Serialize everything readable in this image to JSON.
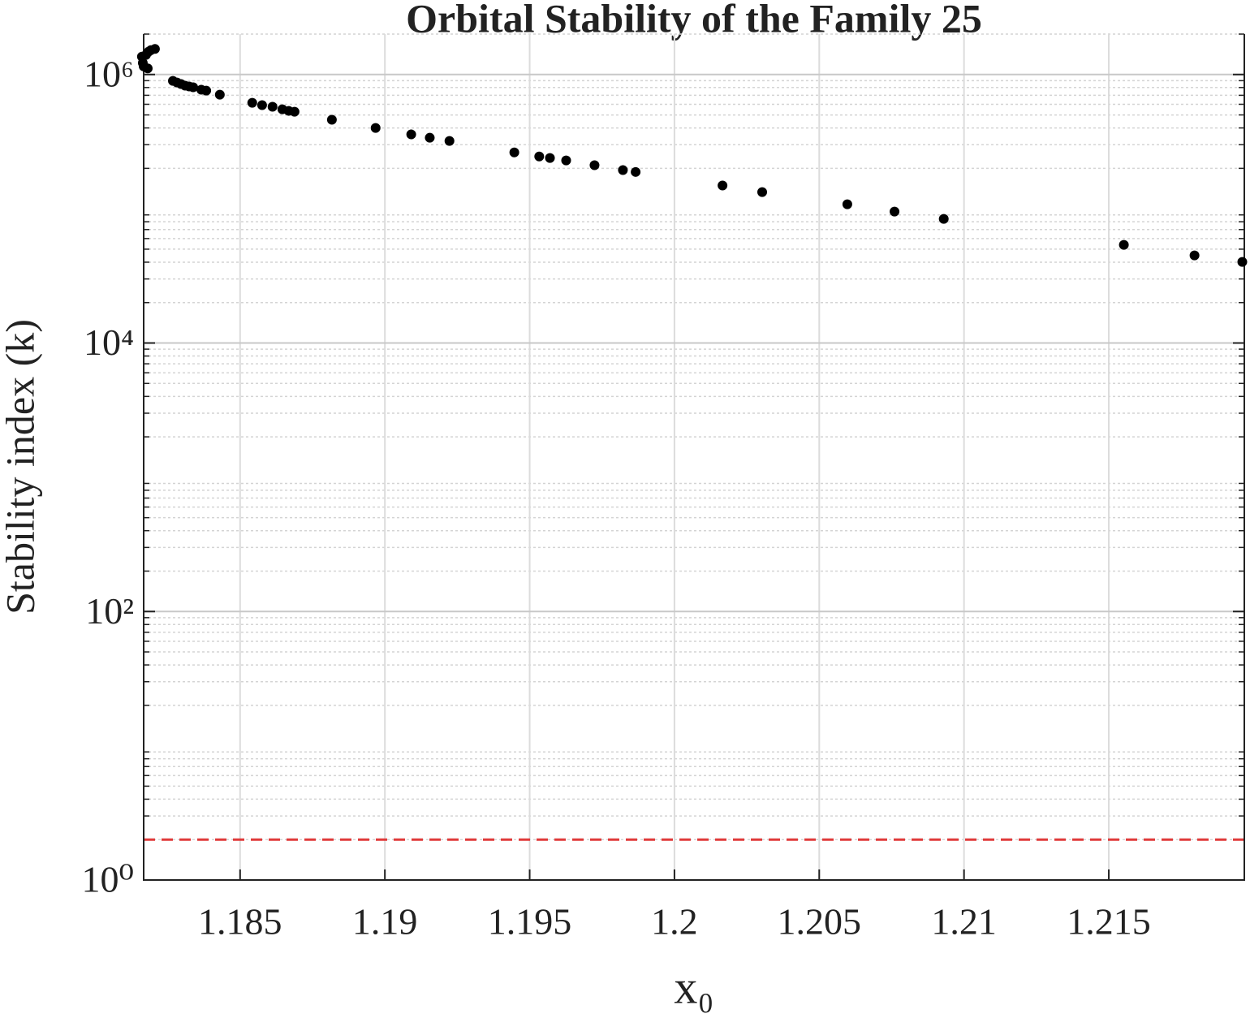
{
  "chart_data": {
    "type": "scatter",
    "title": "Orbital Stability of the Family 25",
    "xlabel": "x₀",
    "ylabel": "Stability index (k)",
    "color": "#000000",
    "log_y": true,
    "grid": true,
    "minor_grid": true,
    "xlim": [
      1.18167,
      1.21968
    ],
    "ylim": [
      1,
      2000000
    ],
    "xticks": [
      1.185,
      1.19,
      1.195,
      1.2,
      1.205,
      1.21,
      1.215
    ],
    "yticks": [
      {
        "value": 1,
        "label": "10⁰"
      },
      {
        "value": 100,
        "label": "10²"
      },
      {
        "value": 10000,
        "label": "10⁴"
      },
      {
        "value": 1000000,
        "label": "10⁶"
      }
    ],
    "reference_line": {
      "value": 2,
      "color": "#e03a3a",
      "style": "dashed"
    },
    "x": [
      1.18161,
      1.18164,
      1.18167,
      1.18175,
      1.18184,
      1.18192,
      1.18206,
      1.18181,
      1.18268,
      1.18282,
      1.18296,
      1.1831,
      1.18324,
      1.18338,
      1.18366,
      1.18383,
      1.1843,
      1.18542,
      1.18576,
      1.18612,
      1.18646,
      1.18668,
      1.18688,
      1.18817,
      1.18968,
      1.19091,
      1.19155,
      1.19223,
      1.19447,
      1.19533,
      1.1957,
      1.19626,
      1.19724,
      1.19822,
      1.19866,
      1.20166,
      1.20303,
      1.20597,
      1.2076,
      1.2093,
      1.21552,
      1.21796,
      1.21961
    ],
    "values": [
      1360000,
      1220000,
      1150000,
      1400000,
      1480000,
      1520000,
      1550000,
      1110000,
      897000,
      872000,
      849000,
      826000,
      815000,
      804000,
      770000,
      759000,
      708000,
      616000,
      591000,
      575000,
      551000,
      536000,
      528000,
      460000,
      400000,
      358000,
      338000,
      320000,
      263000,
      245000,
      239000,
      229000,
      211000,
      194000,
      188000,
      149000,
      133000,
      108000,
      95300,
      84000,
      53800,
      44900,
      40200
    ]
  }
}
